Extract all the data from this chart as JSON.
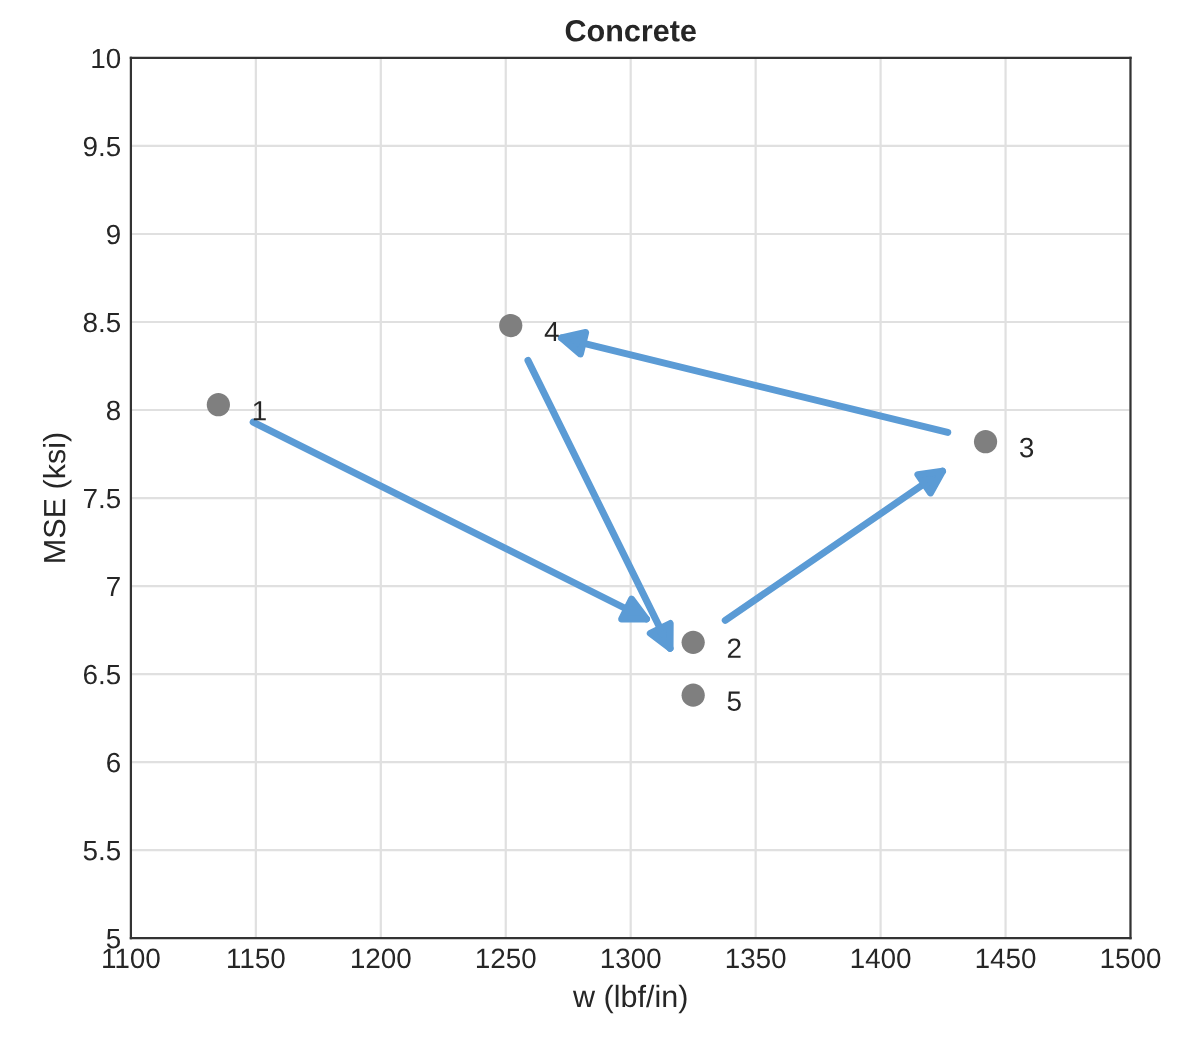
{
  "chart_data": {
    "type": "scatter",
    "title": "Concrete",
    "xlabel": "w (lbf/in)",
    "ylabel": "MSE (ksi)",
    "x": [
      1135,
      1325,
      1442,
      1252,
      1325
    ],
    "values": [
      8.03,
      6.68,
      7.82,
      8.48,
      6.38
    ],
    "color": "#7f7f7f",
    "marker": "circle",
    "xlim": [
      1100,
      1500
    ],
    "xticks": [
      1100,
      1150,
      1200,
      1250,
      1300,
      1350,
      1400,
      1450,
      1500
    ],
    "ylim": [
      5,
      10
    ],
    "yticks": [
      5,
      5.5,
      6,
      6.5,
      7,
      7.5,
      8,
      8.5,
      9,
      9.5,
      10
    ],
    "grid": true,
    "annotations": [
      {
        "text": "1",
        "x": 1135,
        "y": 8.03
      },
      {
        "text": "2",
        "x": 1325,
        "y": 6.68
      },
      {
        "text": "3",
        "x": 1442,
        "y": 7.82
      },
      {
        "text": "4",
        "x": 1252,
        "y": 8.48
      },
      {
        "text": "5",
        "x": 1325,
        "y": 6.38
      }
    ]
  }
}
